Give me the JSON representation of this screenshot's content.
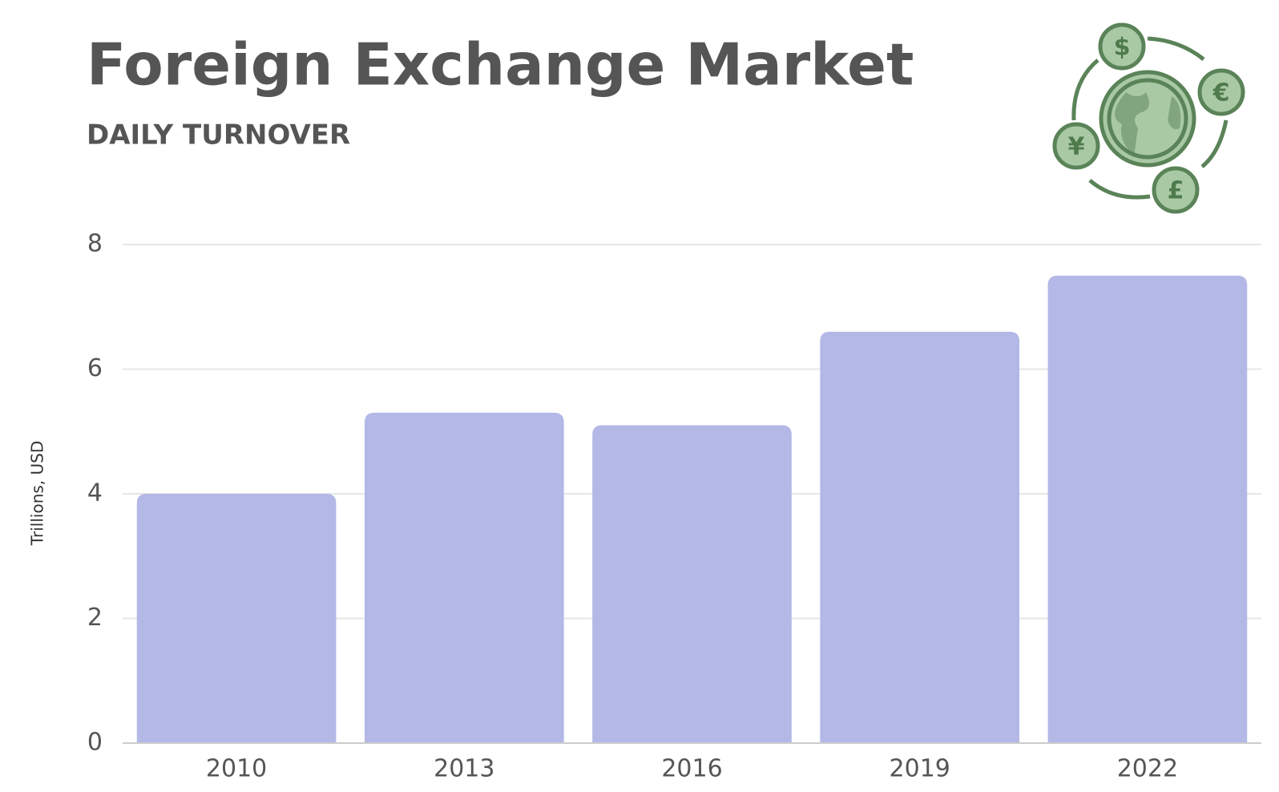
{
  "chart_data": {
    "type": "bar",
    "title": "Foreign Exchange Market",
    "subtitle": "DAILY TURNOVER",
    "y_label": "Trillions, USD",
    "categories": [
      "2010",
      "2013",
      "2016",
      "2019",
      "2022"
    ],
    "values": [
      4.0,
      5.3,
      5.1,
      6.6,
      7.5
    ],
    "color": "#b3b8e6",
    "ylim": [
      0,
      8
    ],
    "yticks": [
      0,
      2,
      4,
      6,
      8
    ],
    "grid": true
  },
  "icon": {
    "symbols": [
      "$",
      "€",
      "£",
      "¥"
    ]
  }
}
